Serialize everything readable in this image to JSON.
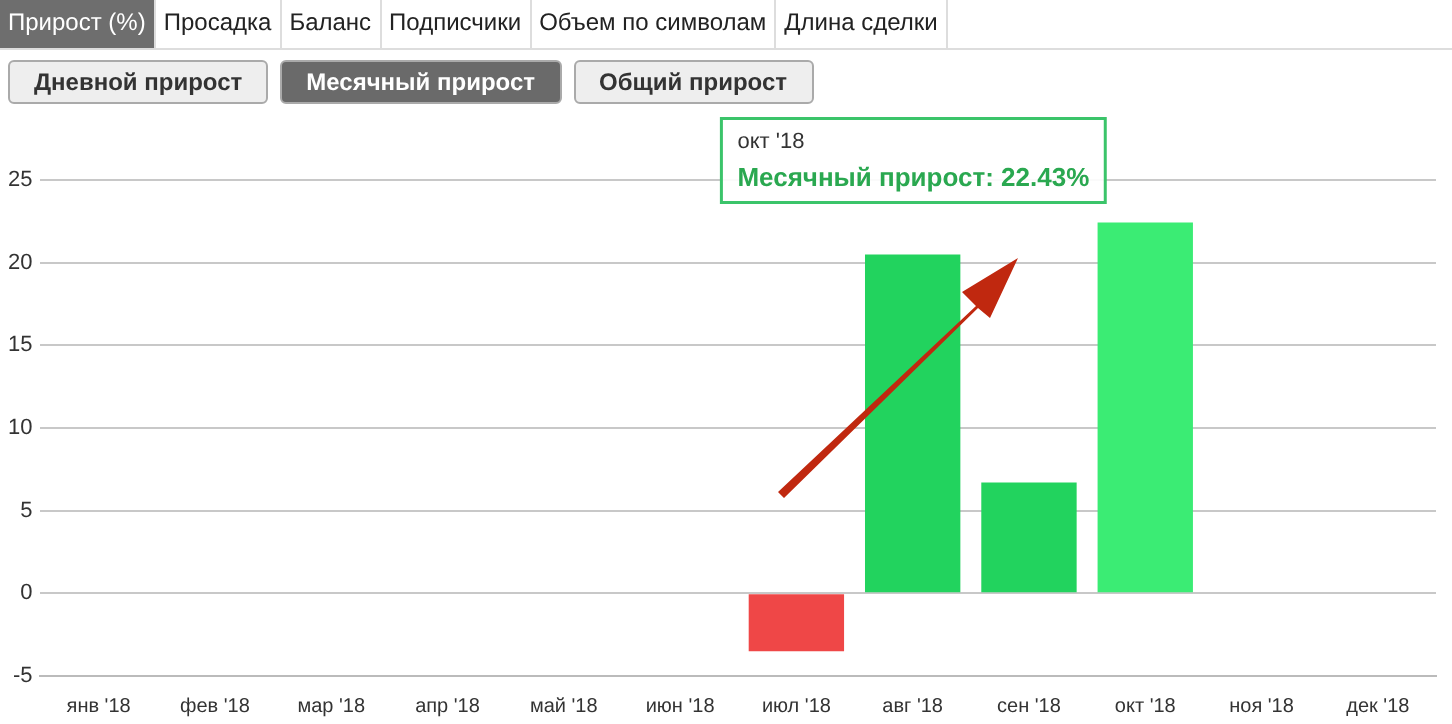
{
  "chart_data": {
    "type": "bar",
    "categories": [
      "янв '18",
      "фев '18",
      "мар '18",
      "апр '18",
      "май '18",
      "июн '18",
      "июл '18",
      "авг '18",
      "сен '18",
      "окт '18",
      "ноя '18",
      "дек '18"
    ],
    "values": [
      null,
      null,
      null,
      null,
      null,
      null,
      -3.5,
      20.5,
      6.7,
      22.43,
      null,
      null
    ],
    "colors": [
      "#22d35e",
      "#22d35e",
      "#22d35e",
      "#22d35e",
      "#22d35e",
      "#22d35e",
      "#ef4747",
      "#22d35e",
      "#22d35e",
      "#3bec74",
      "#22d35e",
      "#22d35e"
    ],
    "ylim": [
      -5,
      25
    ],
    "yticks": [
      -5,
      0,
      5,
      10,
      15,
      20,
      25
    ],
    "grid": "y",
    "legend": false,
    "annotations": [
      "Прирост (%)",
      "Просадка",
      "Баланс",
      "Подписчики",
      "Объем по символам",
      "Длина сделки",
      "Дневной прирост",
      "Месячный прирост",
      "Общий прирост",
      {
        "text": "Месячный прирост: 22.43%",
        "x": "окт '18",
        "y": 22.43
      }
    ]
  }
}
